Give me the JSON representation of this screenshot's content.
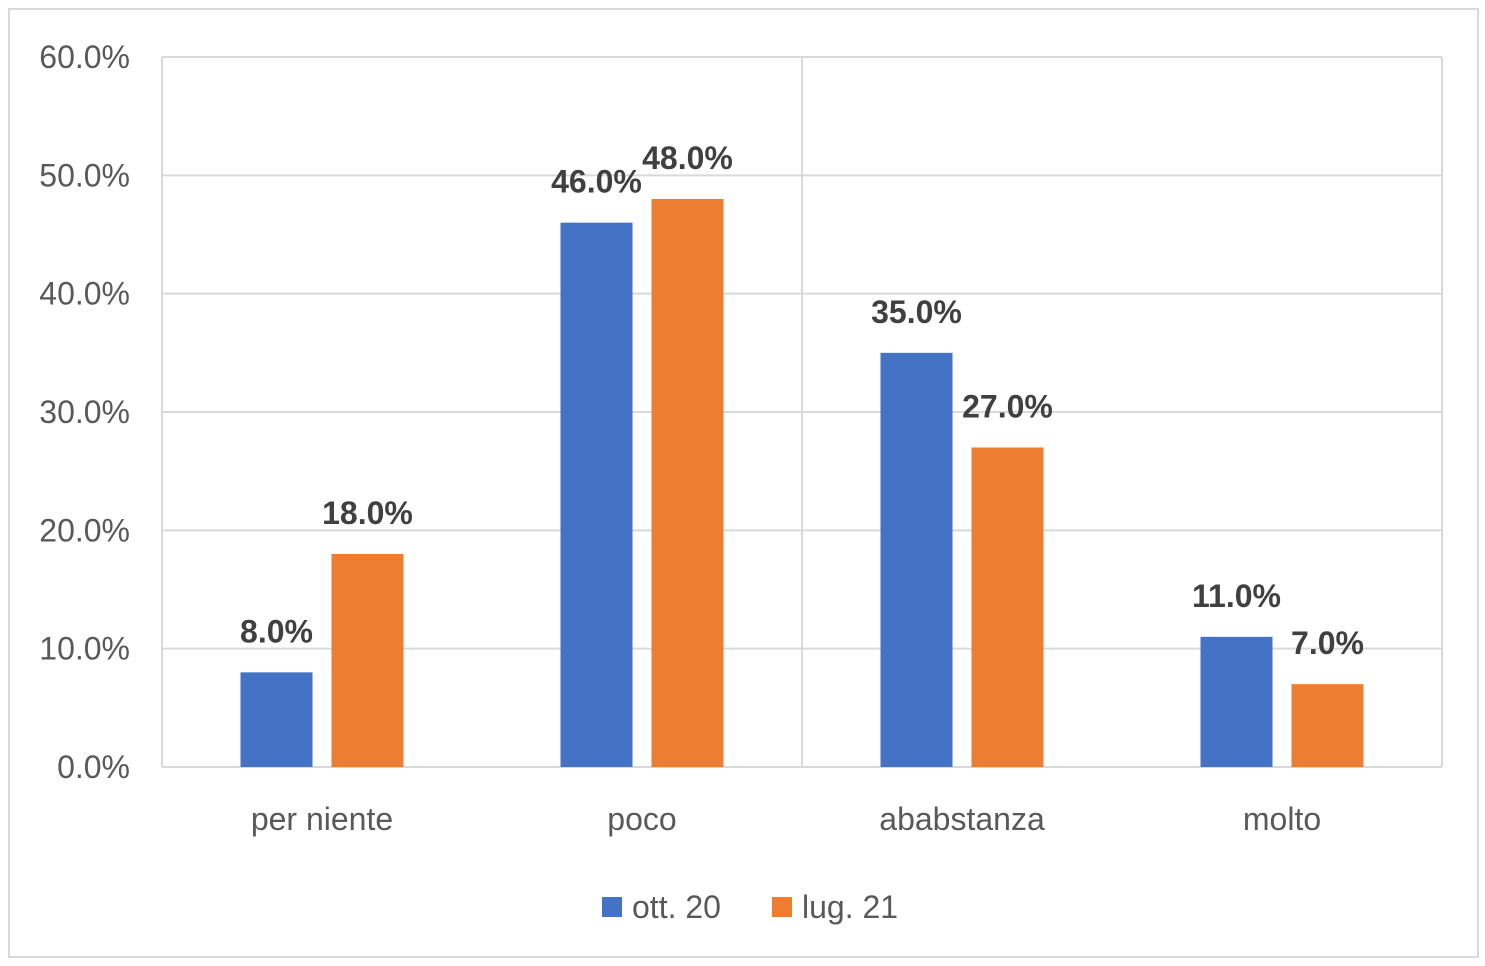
{
  "chart_data": {
    "type": "bar",
    "categories": [
      "per niente",
      "poco",
      "ababstanza",
      "molto"
    ],
    "series": [
      {
        "name": "ott. 20",
        "values": [
          8.0,
          46.0,
          35.0,
          11.0
        ],
        "color": "#4472c4"
      },
      {
        "name": "lug. 21",
        "values": [
          18.0,
          48.0,
          27.0,
          7.0
        ],
        "color": "#ed7d31"
      }
    ],
    "data_labels": [
      [
        "8.0%",
        "46.0%",
        "35.0%",
        "11.0%"
      ],
      [
        "18.0%",
        "48.0%",
        "27.0%",
        "7.0%"
      ]
    ],
    "y_ticks": [
      "0.0%",
      "10.0%",
      "20.0%",
      "30.0%",
      "40.0%",
      "50.0%",
      "60.0%"
    ],
    "ylim": [
      0,
      60
    ],
    "title": "",
    "xlabel": "",
    "ylabel": "",
    "grid": true,
    "legend_position": "bottom"
  }
}
